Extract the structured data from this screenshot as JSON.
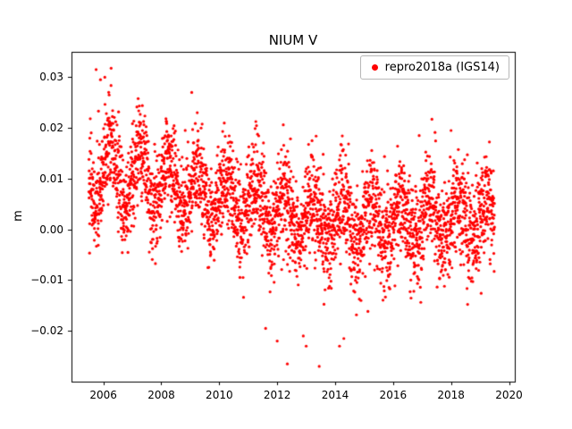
{
  "figure": {
    "background": "#ffffff"
  },
  "chart_data": {
    "type": "scatter",
    "title": "NIUM V",
    "xlabel": "",
    "ylabel": "m",
    "xlim": [
      2004.9,
      2020.2
    ],
    "ylim": [
      -0.03,
      0.035
    ],
    "xticks": [
      2006,
      2008,
      2010,
      2012,
      2014,
      2016,
      2018,
      2020
    ],
    "yticks": [
      -0.02,
      -0.01,
      0.0,
      0.01,
      0.02,
      0.03
    ],
    "grid": false,
    "legend": {
      "position": "upper right",
      "entries": [
        {
          "label": "repro2018a (IGS14)",
          "marker": "dot",
          "color": "#ff0000"
        }
      ]
    },
    "series": [
      {
        "name": "repro2018a (IGS14)",
        "color": "#ff0000",
        "marker": "dot",
        "marker_radius_px": 1.6,
        "x_start": 2005.5,
        "x_end": 2019.5,
        "n_points": 3500,
        "seed": 42,
        "trend": {
          "start_mean": 0.012,
          "end_mean": 0.0016,
          "flatten_after_years": 8.0
        },
        "seasonal_amplitude": 0.006,
        "seasonal_amp_min": 0.0035,
        "seasonal_amp_decay_per_year": 0.0002,
        "noise_sigma": 0.0048,
        "outlier_probability": 0.01,
        "outlier_extra_sigma": 0.007,
        "y_min_observed": -0.027,
        "y_max_observed": 0.032,
        "outliers": [
          [
            2005.75,
            0.0315
          ],
          [
            2005.9,
            0.0295
          ],
          [
            2006.05,
            0.03
          ],
          [
            2006.2,
            0.0265
          ],
          [
            2009.05,
            0.027
          ],
          [
            2012.0,
            -0.022
          ],
          [
            2012.35,
            -0.0265
          ],
          [
            2012.9,
            -0.021
          ],
          [
            2013.0,
            -0.023
          ],
          [
            2013.45,
            -0.027
          ],
          [
            2014.15,
            -0.023
          ],
          [
            2014.3,
            -0.0215
          ],
          [
            2011.6,
            -0.0195
          ],
          [
            2018.0,
            0.0195
          ],
          [
            2016.9,
            0.0185
          ]
        ]
      }
    ]
  },
  "layout_colors": {
    "axes_edge": "#000000",
    "tick_color": "#000000",
    "point_color": "#ff0000"
  }
}
